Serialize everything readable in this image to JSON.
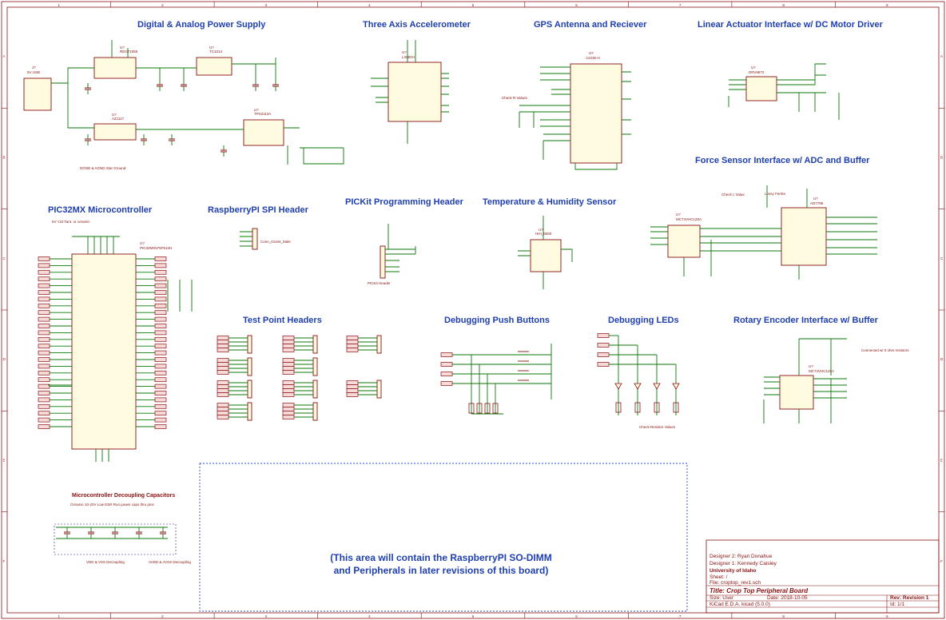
{
  "sections": {
    "power": "Digital & Analog Power Supply",
    "accel": "Three Axis Accelerometer",
    "gps": "GPS Antenna and Reciever",
    "actuator": "Linear Actuator Interface w/ DC Motor Driver",
    "force": "Force Sensor Interface w/ ADC and Buffer",
    "mcu": "PIC32MX Microcontroller",
    "spi": "RaspberryPI SPI Header",
    "pickit": "PICKit Programming Header",
    "temp": "Temperature & Humidity Sensor",
    "test": "Test Point Headers",
    "buttons": "Debugging Push Buttons",
    "leds": "Debugging LEDs",
    "encoder": "Rotary Encoder Interface w/ Buffer",
    "decoupling": "Microcontroller Decoupling Capacitors"
  },
  "parts": {
    "u_power1": {
      "ref": "U?",
      "value": "REG71055"
    },
    "u_power2": {
      "ref": "U?",
      "value": "TC1014"
    },
    "u_power3": {
      "ref": "U?",
      "value": "AZ1117"
    },
    "u_power4": {
      "ref": "U?",
      "value": "TPS2113A"
    },
    "u_accel": {
      "ref": "U?",
      "value": "LIS3DH"
    },
    "u_gps": {
      "ref": "U?",
      "value": "A2235-H"
    },
    "u_driver": {
      "ref": "U?",
      "value": "DRV8872"
    },
    "u_adc": {
      "ref": "U?",
      "value": "AD7799"
    },
    "u_buf1": {
      "ref": "U?",
      "value": "MC74VHC125A"
    },
    "u_mcu": {
      "ref": "U?",
      "value": "PIC32MX575F512H"
    },
    "u_temp": {
      "ref": "U?",
      "value": "HIH_8000"
    },
    "u_buf2": {
      "ref": "U?",
      "value": "MC74VHC125A"
    },
    "j_usb": {
      "ref": "J?",
      "value": "5V USB"
    },
    "j_spi": {
      "ref": "J?",
      "value": "Conn_01x04_Male"
    },
    "j_pickit": {
      "ref": "J?",
      "value": "PICKit Header"
    }
  },
  "notes": {
    "star_ground": "DGND & AGND Star Ground",
    "check_r": "Check R Values",
    "check_l": "Check L Value",
    "lossy_ferrite": "Lossy Ferrite",
    "ceramic": "5V <10 Tant. or ceramic",
    "check_resistor": "Check Resistor Values",
    "connected_w": "Connected w/ 0 ohm resistors",
    "decoupling_note": "Ceramic 10-20V Low ESR Run power caps thru pins",
    "vdd_vss": "VDD & VSS Decoupling",
    "avdd_avss": "AVDD & AVSS Decoupling",
    "placeholder": "(This area will contain the RaspberryPI SO-DIMM",
    "placeholder2": "and Peripherals in later revisions of this board)"
  },
  "title_block": {
    "designer1": "Designer 2: Ryan Donahue",
    "designer2": "Designer 1: Kennedy Caisley",
    "org": "University of Idaho",
    "sheet": "Sheet: /",
    "file": "File: croptop_rev1.sch",
    "title": "Title: Crop Top Peripheral Board",
    "size": "Size: User",
    "date": "Date: 2018-10-05",
    "rev": "Rev: Revision 1",
    "kicad": "KiCad E.D.A.  kicad (5.0.0)",
    "id": "Id: 1/1"
  },
  "border": {
    "cols": [
      "1",
      "2",
      "3",
      "4",
      "5",
      "6",
      "7",
      "8",
      "9"
    ],
    "rows": [
      "A",
      "B",
      "C",
      "D",
      "E",
      "F"
    ]
  }
}
